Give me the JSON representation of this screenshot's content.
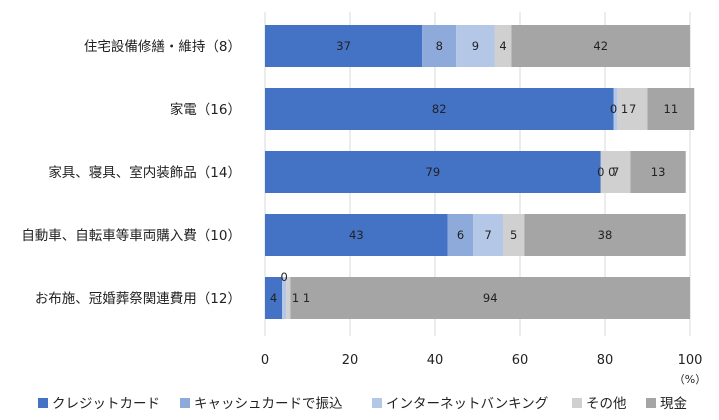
{
  "chart_data": {
    "type": "bar",
    "orientation": "horizontal",
    "stacked": true,
    "categories": [
      "住宅設備修繕・維持（8）",
      "家電（16）",
      "家具、寝具、室内装飾品（14）",
      "自動車、自転車等車両購入費（10）",
      "お布施、冠婚葬祭関連費用（12）"
    ],
    "series": [
      {
        "name": "クレジットカード",
        "color": "#4472c4",
        "values": [
          37,
          82,
          79,
          43,
          4
        ]
      },
      {
        "name": "キャッシュカードで振込",
        "color": "#8eaadb",
        "values": [
          8,
          0,
          0,
          6,
          0
        ]
      },
      {
        "name": "インターネットバンキング",
        "color": "#b4c7e7",
        "values": [
          9,
          1,
          0,
          7,
          1
        ]
      },
      {
        "name": "その他",
        "color": "#d0d0d0",
        "values": [
          4,
          7,
          7,
          5,
          1
        ]
      },
      {
        "name": "現金",
        "color": "#a5a5a5",
        "values": [
          42,
          11,
          13,
          38,
          94
        ]
      }
    ],
    "data_labels": [
      [
        "37",
        "8",
        "9",
        "4",
        "42"
      ],
      [
        "82",
        "0",
        "1",
        "7",
        "11"
      ],
      [
        "79",
        "0",
        "0",
        "7",
        "13"
      ],
      [
        "43",
        "6",
        "7",
        "5",
        "38"
      ],
      [
        "4",
        "0",
        "1",
        "1",
        "94"
      ]
    ],
    "xlim": [
      0,
      100
    ],
    "xticks": [
      "0",
      "20",
      "40",
      "60",
      "80",
      "100"
    ],
    "unit": "（%）",
    "grid": true,
    "legend_position": "bottom"
  }
}
